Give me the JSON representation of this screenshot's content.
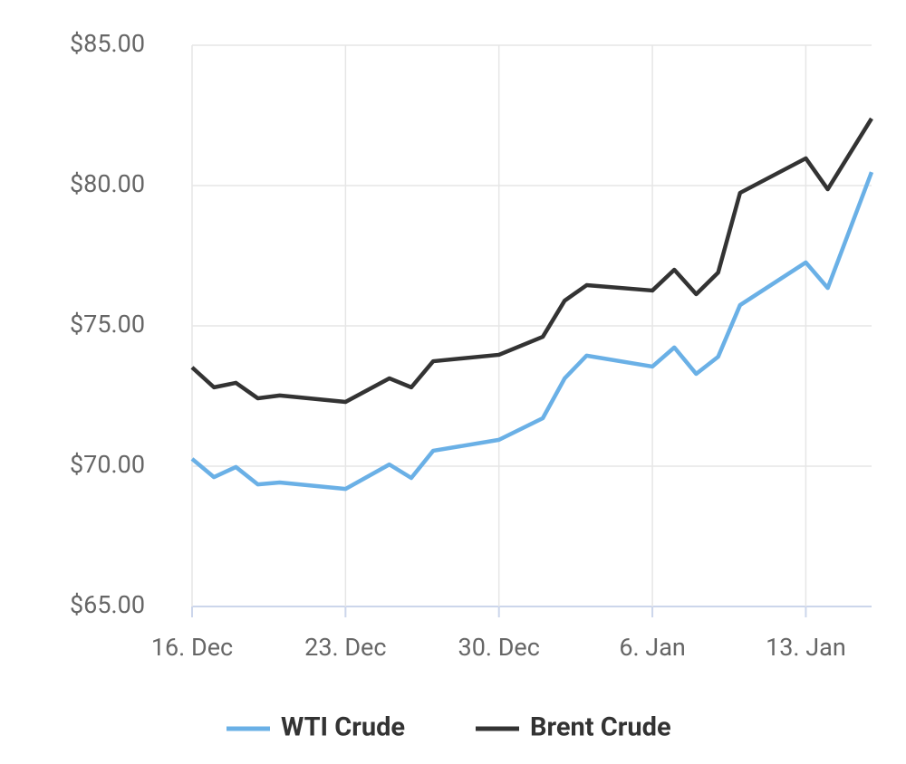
{
  "chart_data": {
    "type": "line",
    "x": [
      "16. Dec",
      "17. Dec",
      "18. Dec",
      "19. Dec",
      "20. Dec",
      "23. Dec",
      "25. Dec",
      "26. Dec",
      "27. Dec",
      "30. Dec",
      "1. Jan",
      "2. Jan",
      "3. Jan",
      "6. Jan",
      "7. Jan",
      "8. Jan",
      "9. Jan",
      "10. Jan",
      "13. Jan",
      "14. Jan",
      "16. Jan"
    ],
    "series": [
      {
        "name": "WTI Crude",
        "color": "#6ab0e6",
        "values": [
          70.26,
          69.61,
          69.97,
          69.35,
          69.42,
          69.19,
          70.06,
          69.58,
          70.55,
          70.94,
          71.71,
          73.13,
          73.94,
          73.55,
          74.23,
          73.29,
          73.9,
          75.74,
          77.26,
          76.35,
          80.48
        ]
      },
      {
        "name": "Brent Crude",
        "color": "#333333",
        "values": [
          73.52,
          72.81,
          72.97,
          72.42,
          72.52,
          72.29,
          73.13,
          72.81,
          73.74,
          73.97,
          74.61,
          75.9,
          76.45,
          76.26,
          77.0,
          76.13,
          76.9,
          79.74,
          80.97,
          79.87,
          82.39
        ]
      }
    ],
    "xlim": [
      "16. Dec",
      "16. Jan"
    ],
    "xticks": [
      "16. Dec",
      "23. Dec",
      "30. Dec",
      "6. Jan",
      "13. Jan"
    ],
    "ylim": [
      65,
      85
    ],
    "yticks": [
      {
        "value": 65,
        "label": "$65.00"
      },
      {
        "value": 70,
        "label": "$70.00"
      },
      {
        "value": 75,
        "label": "$75.00"
      },
      {
        "value": 80,
        "label": "$80.00"
      },
      {
        "value": 85,
        "label": "$85.00"
      }
    ],
    "grid": true,
    "legend": "bottom"
  }
}
